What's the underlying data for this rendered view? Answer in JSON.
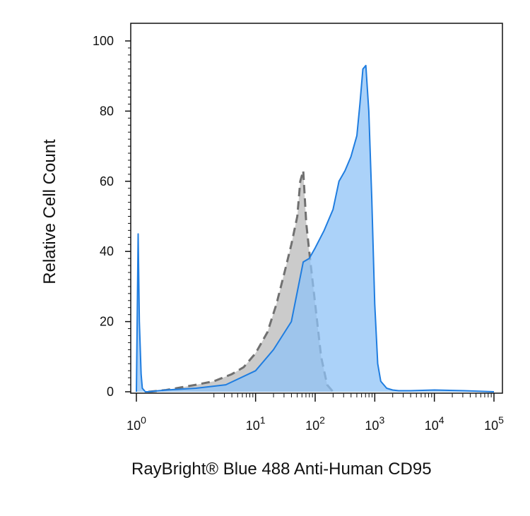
{
  "chart_data": {
    "type": "area",
    "title": "",
    "xlabel": "RayBright® Blue 488 Anti-Human CD95",
    "ylabel": "Relative Cell Count",
    "x_scale": "biexponential",
    "xlim": [
      -1,
      5
    ],
    "ylim": [
      0,
      100
    ],
    "grid": false,
    "legend": "none",
    "y_ticks": [
      0,
      20,
      40,
      60,
      80,
      100
    ],
    "x_ticks": [
      {
        "pos": -1,
        "base": "10",
        "exp": "0"
      },
      {
        "pos": 1,
        "base": "10",
        "exp": "1"
      },
      {
        "pos": 2,
        "base": "10",
        "exp": "2"
      },
      {
        "pos": 3,
        "base": "10",
        "exp": "3"
      },
      {
        "pos": 4,
        "base": "10",
        "exp": "4"
      },
      {
        "pos": 5,
        "base": "10",
        "exp": "5"
      }
    ],
    "series": [
      {
        "color": "#c8c8c8",
        "line_color": "#707070",
        "style": "dashed",
        "x": [
          -0.8,
          -0.5,
          0.0,
          0.3,
          0.6,
          0.8,
          1.0,
          1.2,
          1.35,
          1.5,
          1.6,
          1.7,
          1.75,
          1.8,
          1.85,
          1.9,
          2.0,
          2.1,
          2.2,
          2.3
        ],
        "y": [
          0,
          0.5,
          2,
          3,
          5,
          7,
          11,
          17,
          25,
          35,
          42,
          50,
          60,
          63,
          48,
          40,
          25,
          10,
          2,
          0
        ]
      },
      {
        "color": "#8fc3f7",
        "line_color": "#1f7de0",
        "style": "solid",
        "x": [
          -1.0,
          -0.97,
          -0.95,
          -0.92,
          -0.9,
          -0.85,
          -0.8,
          -0.5,
          0.0,
          0.5,
          1.0,
          1.3,
          1.6,
          1.8,
          1.9,
          2.0,
          2.15,
          2.3,
          2.4,
          2.5,
          2.6,
          2.7,
          2.75,
          2.8,
          2.85,
          2.9,
          2.95,
          3.0,
          3.05,
          3.1,
          3.2,
          3.3,
          3.4,
          3.6,
          4.0,
          4.5,
          5.0
        ],
        "y": [
          0,
          45,
          20,
          5,
          1,
          0,
          0,
          0.5,
          1,
          2,
          6,
          12,
          20,
          37,
          38,
          41,
          46,
          52,
          60,
          63,
          67,
          73,
          82,
          92,
          93,
          80,
          55,
          25,
          8,
          3,
          1,
          0.5,
          0.3,
          0.3,
          0.5,
          0.3,
          0
        ]
      }
    ]
  }
}
